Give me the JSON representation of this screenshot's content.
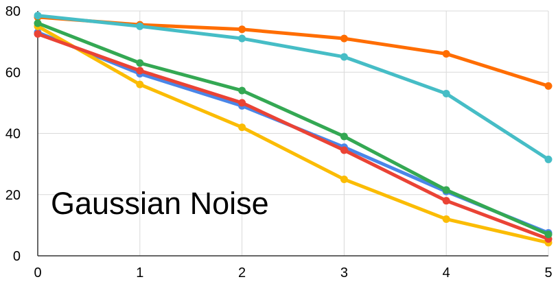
{
  "chart_data": {
    "type": "line",
    "title": "",
    "xlabel": "",
    "ylabel": "",
    "annotation": "Gaussian Noise",
    "x": [
      0,
      1,
      2,
      3,
      4,
      5
    ],
    "xlim": [
      0,
      5
    ],
    "ylim": [
      0,
      80
    ],
    "x_ticks": [
      "0",
      "1",
      "2",
      "3",
      "4",
      "5"
    ],
    "y_ticks": [
      "0",
      "20",
      "40",
      "60",
      "80"
    ],
    "grid": true,
    "legend": "none",
    "series": [
      {
        "color": "#4a86e8",
        "values": [
          73,
          59.5,
          49,
          35.5,
          21,
          7.5
        ]
      },
      {
        "color": "#ff6d00",
        "values": [
          78,
          75.5,
          74,
          71,
          66,
          55.5
        ]
      },
      {
        "color": "#46bdc6",
        "values": [
          78.5,
          75,
          71,
          65,
          53,
          31.5
        ]
      },
      {
        "color": "#fbbc04",
        "values": [
          75,
          56,
          42,
          25,
          12,
          4.3
        ]
      },
      {
        "color": "#ea4335",
        "values": [
          72.5,
          60.5,
          50,
          34.5,
          18,
          5.5
        ]
      },
      {
        "color": "#34a853",
        "values": [
          76,
          63,
          54,
          39,
          21.5,
          7
        ]
      }
    ]
  }
}
